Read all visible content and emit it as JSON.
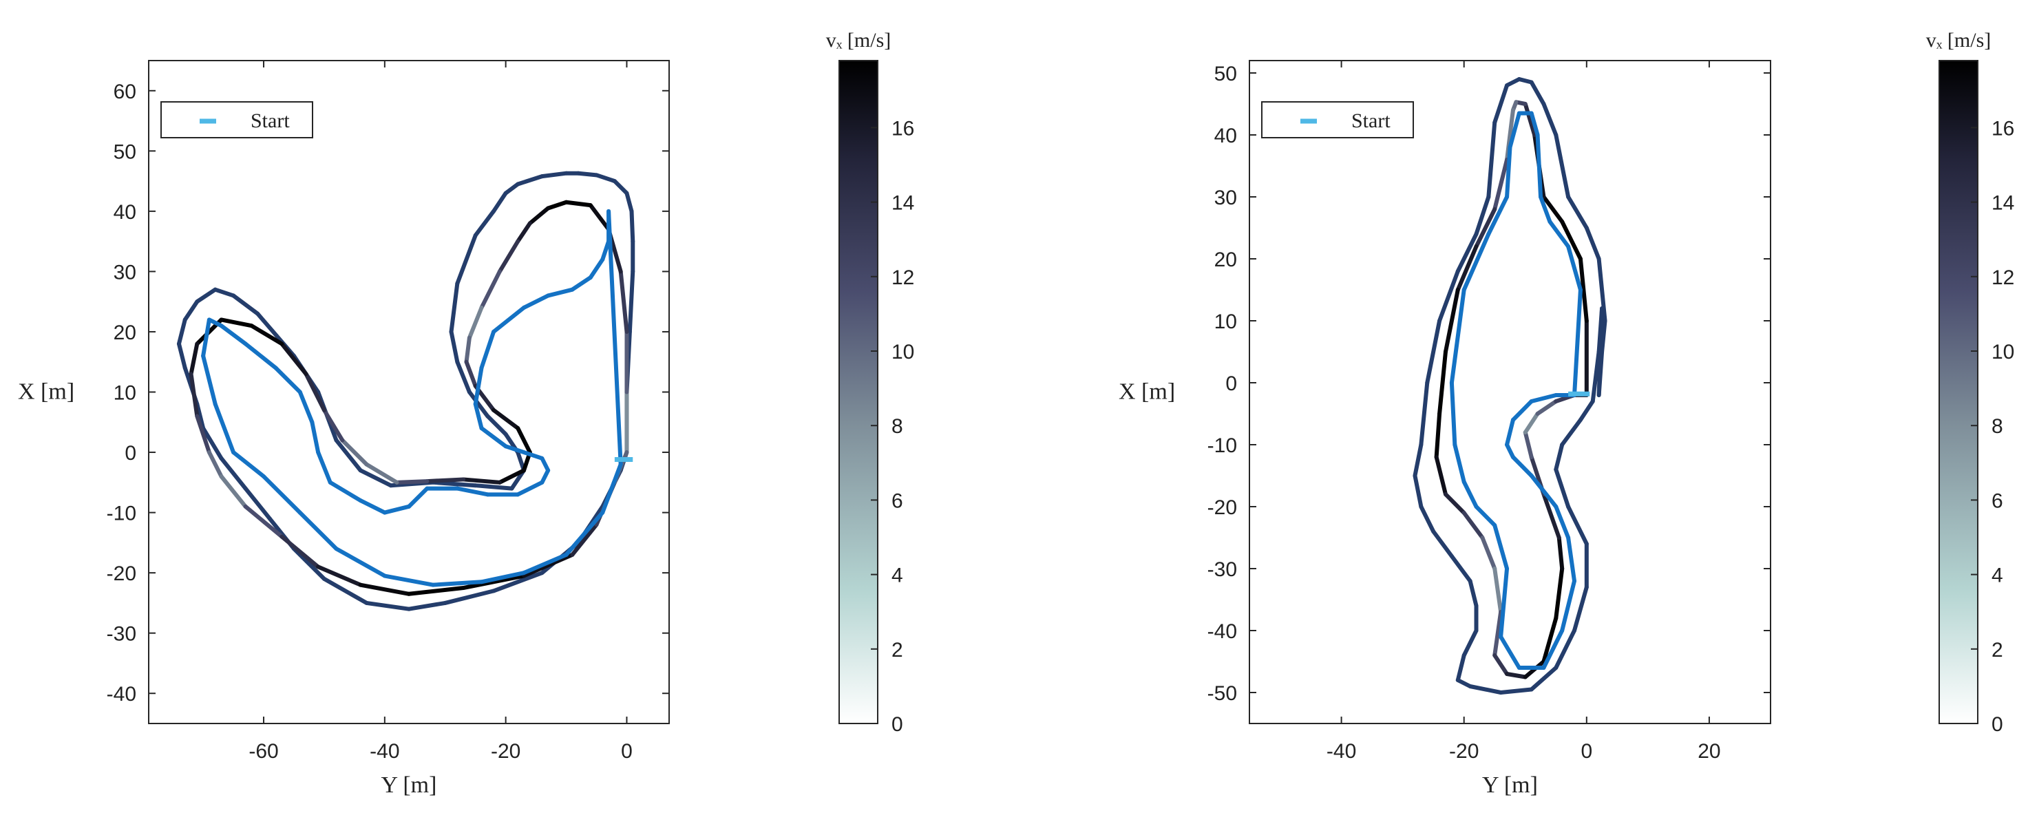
{
  "chart_data": [
    {
      "type": "line",
      "xlabel": "Y [m]",
      "ylabel": "X [m]",
      "xlim": [
        -79,
        7
      ],
      "ylim": [
        -45,
        65
      ],
      "xticks": [
        -60,
        -40,
        -20,
        0
      ],
      "yticks": [
        -40,
        -30,
        -20,
        -10,
        0,
        10,
        20,
        30,
        40,
        50,
        60
      ],
      "legend": {
        "label": "Start",
        "placement": "top-left"
      },
      "colorbar": {
        "label": "v_x [m/s]",
        "range": [
          0,
          17.8
        ],
        "ticks": [
          0,
          2,
          4,
          6,
          8,
          10,
          12,
          14,
          16
        ]
      },
      "series": [
        {
          "role": "outer-boundary",
          "x": [
            0,
            0,
            0.5,
            1,
            1,
            0.8,
            0,
            -2,
            -5,
            -8,
            -10,
            -14,
            -18,
            -20,
            -22,
            -25,
            -28,
            -29,
            -28,
            -26,
            -23,
            -20,
            -18,
            -17,
            -19,
            -25,
            -32,
            -39,
            -44,
            -48,
            -51,
            -55,
            -61,
            -65,
            -68,
            -71,
            -73,
            -74,
            -73,
            -71,
            -70,
            -67,
            -63,
            -59,
            -55,
            -50,
            -43,
            -36,
            -30,
            -22,
            -14,
            -8,
            -4,
            -1,
            0
          ],
          "y": [
            0,
            10,
            20,
            30,
            35,
            40,
            43,
            45,
            46,
            46.3,
            46.3,
            45.8,
            44.5,
            43,
            40,
            36,
            28,
            20,
            15,
            10,
            6,
            3,
            0,
            -3,
            -6,
            -5.5,
            -5,
            -5.5,
            -3,
            2,
            10,
            16,
            23,
            26,
            27,
            25,
            22,
            18,
            14,
            8,
            4,
            -1,
            -6,
            -11,
            -16,
            -21,
            -25,
            -26,
            -25,
            -23,
            -20,
            -15,
            -9,
            -3,
            0
          ],
          "colors_by": "speed"
        },
        {
          "role": "racing-line",
          "x": [
            0,
            0,
            0,
            -1,
            -3,
            -6,
            -10,
            -13,
            -16,
            -18,
            -21,
            -24,
            -26,
            -26.5,
            -25,
            -22,
            -18,
            -16,
            -17,
            -21,
            -27,
            -33,
            -38,
            -43,
            -47,
            -50,
            -53,
            -57,
            -62,
            -67,
            -71,
            -72,
            -71,
            -69,
            -67,
            -63,
            -57,
            -51,
            -44,
            -36,
            -27,
            -17,
            -9,
            -5,
            -2,
            0
          ],
          "y": [
            0,
            10,
            20,
            30,
            37,
            41,
            41.5,
            40.5,
            38,
            35,
            30,
            24,
            19,
            15,
            11,
            7,
            4,
            0,
            -3,
            -5,
            -4.5,
            -4.8,
            -5,
            -2,
            2,
            7,
            13,
            18,
            21,
            22,
            18,
            13,
            6,
            0,
            -4,
            -9,
            -14,
            -19,
            -22,
            -23.5,
            -22.5,
            -20.5,
            -17,
            -12,
            -5,
            0
          ],
          "colors_by": "speed"
        },
        {
          "role": "inner-boundary",
          "x": [
            -3,
            -3,
            -4,
            -6,
            -9,
            -13,
            -17,
            -22,
            -24,
            -25,
            -24,
            -20,
            -14,
            -13,
            -14,
            -18,
            -23,
            -28,
            -33,
            -36,
            -40,
            -44,
            -49,
            -51,
            -52,
            -54,
            -58,
            -63,
            -67,
            -69,
            -70,
            -68,
            -65,
            -60,
            -54,
            -48,
            -40,
            -32,
            -24,
            -17,
            -10,
            -4,
            -1,
            -3
          ],
          "y": [
            40,
            35,
            32,
            29,
            27,
            26,
            24,
            20,
            14,
            8,
            4,
            1,
            -1,
            -3,
            -5,
            -7,
            -7,
            -6,
            -6,
            -9,
            -10,
            -8,
            -5,
            0,
            5,
            10,
            14,
            18,
            21,
            22,
            16,
            8,
            0,
            -4,
            -10,
            -16,
            -20.5,
            -22,
            -21.5,
            -20,
            -17,
            -10,
            -2,
            40
          ],
          "colors_by": "speed"
        }
      ]
    },
    {
      "type": "line",
      "xlabel": "Y [m]",
      "ylabel": "X [m]",
      "xlim": [
        -55,
        30
      ],
      "ylim": [
        -55,
        52
      ],
      "xticks": [
        -40,
        -20,
        0,
        20
      ],
      "yticks": [
        -50,
        -40,
        -30,
        -20,
        -10,
        0,
        10,
        20,
        30,
        40,
        50
      ],
      "legend": {
        "label": "Start",
        "placement": "top-left"
      },
      "colorbar": {
        "label": "v_x [m/s]",
        "range": [
          0,
          17.8
        ],
        "ticks": [
          0,
          2,
          4,
          6,
          8,
          10,
          12,
          14,
          16
        ]
      },
      "series": [
        {
          "role": "outer-boundary",
          "x": [
            2,
            2.5,
            3,
            2,
            0,
            -3,
            -5,
            -7,
            -9,
            -11,
            -13,
            -15,
            -16,
            -18,
            -21,
            -24,
            -26,
            -27,
            -28,
            -27,
            -25,
            -22,
            -19,
            -18,
            -18,
            -20,
            -21,
            -19,
            -14,
            -9,
            -5,
            -2,
            0,
            0,
            -3,
            -5,
            -4,
            -1,
            1,
            2,
            2.5,
            2
          ],
          "y": [
            -2,
            5,
            10,
            20,
            25,
            30,
            40,
            45,
            48.5,
            49,
            48,
            42,
            30,
            24,
            18,
            10,
            0,
            -10,
            -15,
            -20,
            -24,
            -28,
            -32,
            -36,
            -40,
            -44,
            -48,
            -49,
            -50,
            -49.5,
            -46,
            -40,
            -33,
            -26,
            -20,
            -14,
            -10,
            -6,
            -3,
            5,
            12,
            -2
          ],
          "colors_by": "speed"
        },
        {
          "role": "racing-line",
          "x": [
            0,
            0,
            -1,
            -4,
            -7,
            -8.5,
            -10,
            -11.5,
            -12,
            -13,
            -15,
            -18,
            -21,
            -23,
            -24,
            -24.5,
            -23,
            -20,
            -17,
            -15,
            -14,
            -15,
            -13,
            -10,
            -7,
            -5,
            -4,
            -4.5,
            -7,
            -9,
            -10,
            -8,
            -5,
            -2,
            0
          ],
          "y": [
            -2,
            10,
            20,
            26,
            30,
            40,
            45,
            45.3,
            44,
            36,
            28,
            22,
            15,
            5,
            -5,
            -12,
            -18,
            -21,
            -25,
            -30,
            -37,
            -44,
            -47,
            -47.5,
            -45,
            -38,
            -30,
            -25,
            -18,
            -12,
            -8,
            -5,
            -3,
            -2,
            -2
          ],
          "colors_by": "speed"
        },
        {
          "role": "inner-boundary",
          "x": [
            -2,
            -1,
            -3,
            -6,
            -7.5,
            -8,
            -9,
            -11,
            -12.5,
            -13,
            -16,
            -20,
            -22,
            -21.5,
            -20,
            -18,
            -15,
            -13,
            -14,
            -11,
            -7,
            -4,
            -2,
            -3,
            -5,
            -9,
            -12,
            -13,
            -12,
            -9,
            -5,
            -2
          ],
          "y": [
            -2,
            15,
            22,
            26,
            30,
            40,
            43.5,
            43.5,
            38,
            30,
            24,
            15,
            0,
            -10,
            -16,
            -20,
            -23,
            -30,
            -41,
            -46,
            -46,
            -40,
            -32,
            -25,
            -20,
            -15,
            -12,
            -10,
            -6,
            -3,
            -2,
            -2
          ],
          "colors_by": "speed"
        }
      ]
    }
  ]
}
